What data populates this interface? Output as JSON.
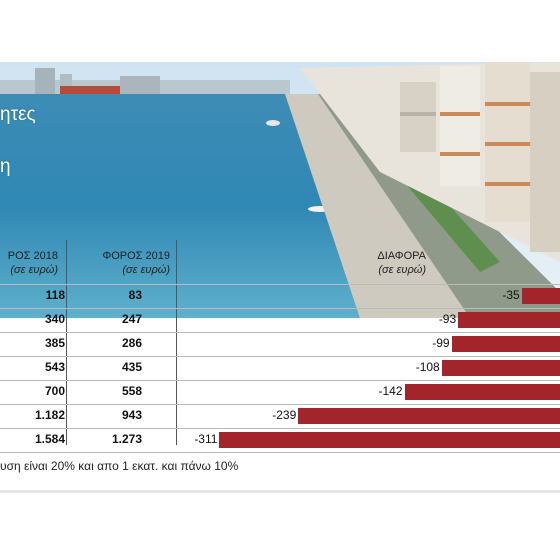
{
  "title": {
    "line1": "ητες",
    "line2": "η"
  },
  "columns": {
    "tax2018": {
      "label": "ΡΟΣ 2018",
      "unit": "(σε ευρώ)"
    },
    "tax2019": {
      "label": "ΦΟΡΟΣ 2019",
      "unit": "(σε ευρώ)"
    },
    "diff": {
      "label": "ΔΙΑΦΟΡΑ",
      "unit": "(σε ευρώ)"
    }
  },
  "footnote": "υση είναι 20% και απο 1 εκατ. και πάνω 10%",
  "colors": {
    "bar": "#a3252c"
  },
  "chart_data": {
    "type": "bar",
    "orientation": "horizontal",
    "xlim": [
      -311,
      0
    ],
    "rows": [
      {
        "tax_2018": "118",
        "tax_2019": "83",
        "diff": -35,
        "diff_label": "-35"
      },
      {
        "tax_2018": "340",
        "tax_2019": "247",
        "diff": -93,
        "diff_label": "-93"
      },
      {
        "tax_2018": "385",
        "tax_2019": "286",
        "diff": -99,
        "diff_label": "-99"
      },
      {
        "tax_2018": "543",
        "tax_2019": "435",
        "diff": -108,
        "diff_label": "-108"
      },
      {
        "tax_2018": "700",
        "tax_2019": "558",
        "diff": -142,
        "diff_label": "-142"
      },
      {
        "tax_2018": "1.182",
        "tax_2019": "943",
        "diff": -239,
        "diff_label": "-239"
      },
      {
        "tax_2018": "1.584",
        "tax_2019": "1.273",
        "diff": -311,
        "diff_label": "-311"
      }
    ]
  }
}
